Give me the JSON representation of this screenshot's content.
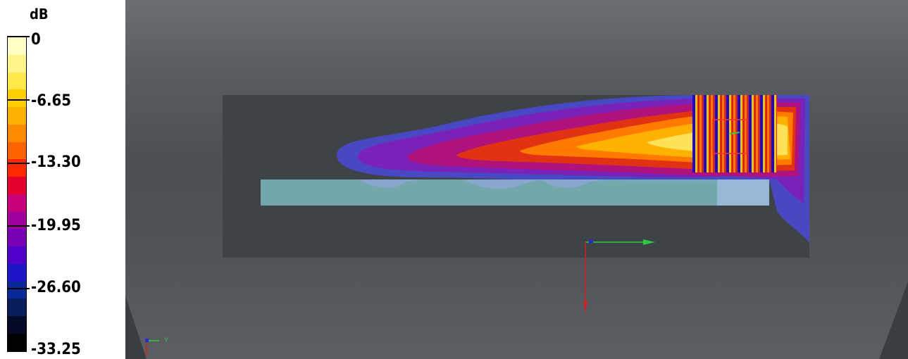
{
  "legend": {
    "unit": "dB",
    "ticks": [
      "0",
      "-6.65",
      "-13.30",
      "-19.95",
      "-26.60",
      "-33.25"
    ],
    "colors": [
      "#ffffc6",
      "#fff58c",
      "#ffe94a",
      "#ffcf00",
      "#ffb300",
      "#ff8c00",
      "#ff6400",
      "#ff2800",
      "#e6002e",
      "#c8007a",
      "#a0009e",
      "#7800b4",
      "#5000c8",
      "#1e14c8",
      "#0a2896",
      "#0a1e5a",
      "#050a28",
      "#000000"
    ]
  },
  "viewport": {
    "axis_y_label": "Y",
    "colors": {
      "room": "#3e4347",
      "slab": "#7ab3b6",
      "axis_x": "#2ecc40",
      "axis_z": "#d02020"
    }
  }
}
